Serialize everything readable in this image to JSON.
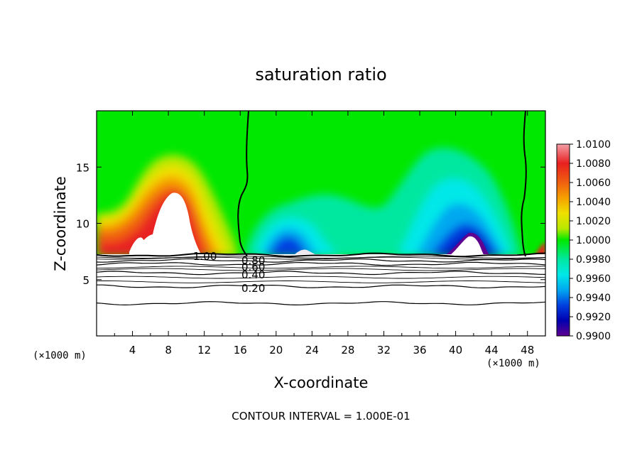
{
  "chart_data": {
    "type": "heatmap",
    "title": "saturation ratio",
    "xlabel": "X-coordinate",
    "ylabel": "Z-coordinate",
    "x_unit": "(×1000 m)",
    "x_unit_right": "(×1000 m)",
    "xlim": [
      0,
      50
    ],
    "ylim": [
      0,
      20
    ],
    "x_ticks": [
      4,
      8,
      12,
      16,
      20,
      24,
      28,
      32,
      36,
      40,
      44,
      48
    ],
    "x_tick_labels": [
      "4",
      "8",
      "12",
      "16",
      "20",
      "24",
      "28",
      "32",
      "36",
      "40",
      "44",
      "48"
    ],
    "y_ticks": [
      5,
      10,
      15
    ],
    "y_tick_labels": [
      "5",
      "10",
      "15"
    ],
    "colorbar": {
      "min": 0.99,
      "max": 1.01,
      "labels": [
        "1.0100",
        "1.0080",
        "1.0060",
        "1.0040",
        "1.0020",
        "1.0000",
        "0.9980",
        "0.9960",
        "0.9940",
        "0.9920",
        "0.9900"
      ],
      "colors": [
        "#f4a0a8",
        "#e82020",
        "#f06010",
        "#f5a000",
        "#f0e000",
        "#b8e800",
        "#00e800",
        "#00e8a0",
        "#00e8e8",
        "#00a8f0",
        "#0040e0",
        "#0000b0",
        "#600090"
      ]
    },
    "contour_levels": [
      {
        "label": "1.00",
        "z": 7.2
      },
      {
        "label": "0.80",
        "z": 6.7
      },
      {
        "label": "0.60",
        "z": 6.4
      },
      {
        "label": "0.40",
        "z": 5.6
      },
      {
        "label": "0.20",
        "z": 4.4
      },
      {
        "label": "",
        "z": 2.9
      }
    ],
    "saturation_boundary_x": [
      16.5,
      47.5
    ],
    "footer": "CONTOUR INTERVAL = 1.000E-01"
  }
}
